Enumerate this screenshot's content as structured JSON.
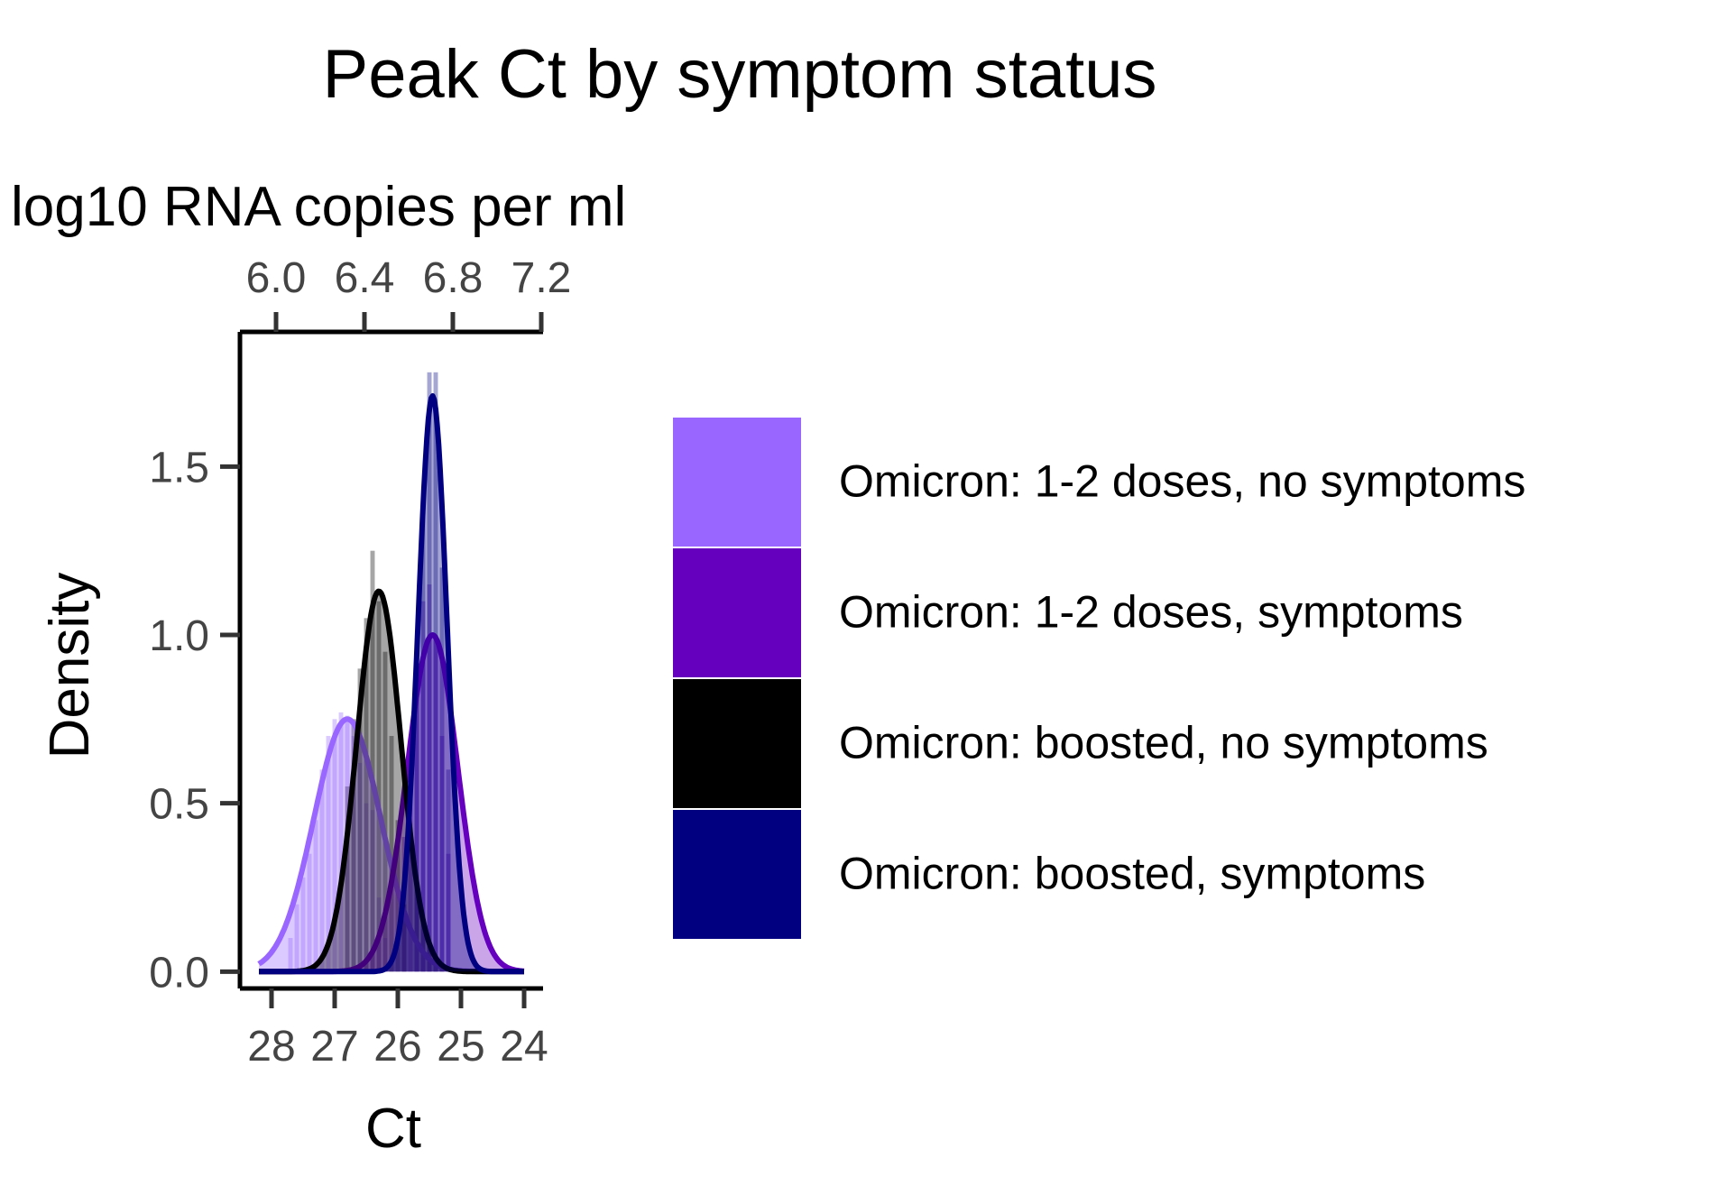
{
  "chart_data": {
    "type": "area",
    "title": "Peak Ct by symptom status",
    "xlabel": "Ct",
    "ylabel": "Density",
    "secondary_xlabel": "log10 RNA copies per ml",
    "x_reversed": true,
    "xlim": [
      28.5,
      23.7
    ],
    "ylim": [
      -0.05,
      1.9
    ],
    "x_ticks": [
      28,
      27,
      26,
      25,
      24
    ],
    "x_tick_labels": [
      "28",
      "27",
      "26",
      "25",
      "24"
    ],
    "secondary_x_ticks": [
      6.0,
      6.4,
      6.8,
      7.2
    ],
    "secondary_x_tick_labels": [
      "6.0",
      "6.4",
      "6.8",
      "7.2"
    ],
    "y_ticks": [
      0.0,
      0.5,
      1.0,
      1.5
    ],
    "y_tick_labels": [
      "0.0",
      "0.5",
      "1.0",
      "1.5"
    ],
    "legend_position": "right",
    "grid": false,
    "series": [
      {
        "name": "Omicron: 1-2 doses, no symptoms",
        "color": "#9966ff",
        "density": {
          "peak_x": 26.8,
          "peak_y": 0.75,
          "sd": 0.53,
          "x_min": 28.2,
          "x_max": 24.0
        },
        "histogram": {
          "x": [
            27.7,
            27.6,
            27.5,
            27.4,
            27.3,
            27.2,
            27.1,
            27.0,
            26.9,
            26.8,
            26.7,
            26.6,
            26.5,
            26.4,
            26.3,
            26.2
          ],
          "values": [
            0.1,
            0.2,
            0.28,
            0.35,
            0.45,
            0.6,
            0.7,
            0.75,
            0.77,
            0.76,
            0.7,
            0.62,
            0.5,
            0.48,
            0.22,
            0.1
          ]
        }
      },
      {
        "name": "Omicron: 1-2 doses, symptoms",
        "color": "#6600bf",
        "density": {
          "peak_x": 25.45,
          "peak_y": 1.0,
          "sd": 0.4,
          "x_min": 28.2,
          "x_max": 24.0
        },
        "histogram": {
          "x": [
            25.9,
            25.8,
            25.7,
            25.6,
            25.5,
            25.4,
            25.3,
            25.2
          ],
          "values": [
            0.4,
            0.6,
            0.85,
            1.1,
            1.15,
            1.0,
            0.7,
            0.35
          ]
        }
      },
      {
        "name": "Omicron: boosted, no symptoms",
        "color": "#000000",
        "density": {
          "peak_x": 26.3,
          "peak_y": 1.13,
          "sd": 0.35,
          "x_min": 28.2,
          "x_max": 24.0
        },
        "histogram": {
          "x": [
            26.8,
            26.7,
            26.6,
            26.5,
            26.4,
            26.3,
            26.2,
            26.1,
            26.0,
            25.9
          ],
          "values": [
            0.55,
            0.75,
            0.9,
            1.05,
            1.25,
            1.1,
            0.95,
            0.7,
            0.45,
            0.2
          ]
        }
      },
      {
        "name": "Omicron: boosted, symptoms",
        "color": "#000080",
        "density": {
          "peak_x": 25.45,
          "peak_y": 1.71,
          "sd": 0.23,
          "x_min": 28.2,
          "x_max": 24.0
        },
        "histogram": {
          "x": [
            25.7,
            25.6,
            25.5,
            25.4,
            25.3,
            25.2
          ],
          "values": [
            0.9,
            1.4,
            1.78,
            1.78,
            1.2,
            0.6
          ]
        }
      }
    ]
  }
}
